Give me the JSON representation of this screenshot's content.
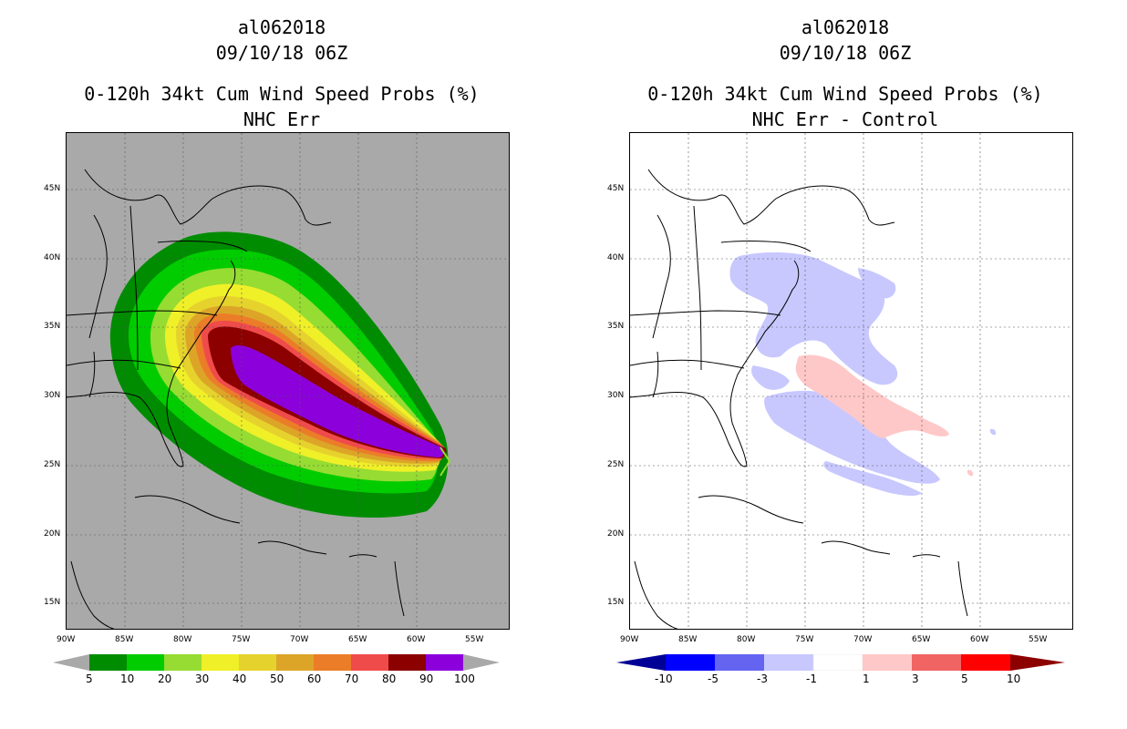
{
  "left_panel": {
    "storm_id": "al062018",
    "datetime": "09/10/18 06Z",
    "product": "0-120h 34kt Cum Wind Speed Probs (%)",
    "subtitle": "NHC Err",
    "lat_labels": [
      "45N",
      "40N",
      "35N",
      "30N",
      "25N",
      "20N",
      "15N"
    ],
    "lon_labels": [
      "90W",
      "85W",
      "80W",
      "75W",
      "70W",
      "65W",
      "60W",
      "55W"
    ],
    "colorbar": {
      "labels": [
        "5",
        "10",
        "20",
        "30",
        "40",
        "50",
        "60",
        "70",
        "80",
        "90",
        "100"
      ],
      "colors": [
        "#008c00",
        "#00cc00",
        "#96dc32",
        "#f0f028",
        "#e6d22d",
        "#dca528",
        "#eb7d28",
        "#f04b4b",
        "#8c0000",
        "#8c00dc"
      ]
    },
    "background_color": "#a9a9a9"
  },
  "right_panel": {
    "storm_id": "al062018",
    "datetime": "09/10/18 06Z",
    "product": "0-120h 34kt Cum Wind Speed Probs (%)",
    "subtitle": "NHC Err - Control",
    "lat_labels": [
      "45N",
      "40N",
      "35N",
      "30N",
      "25N",
      "20N",
      "15N"
    ],
    "lon_labels": [
      "90W",
      "85W",
      "80W",
      "75W",
      "70W",
      "65W",
      "60W",
      "55W"
    ],
    "colorbar": {
      "labels": [
        "-10",
        "-5",
        "-3",
        "-1",
        "1",
        "3",
        "5",
        "10"
      ],
      "colors": [
        "#000096",
        "#0000ff",
        "#6464f0",
        "#c8c8ff",
        "#ffffff",
        "#ffc8c8",
        "#f06464",
        "#ff0000",
        "#8c0000"
      ]
    },
    "background_color": "#ffffff"
  }
}
